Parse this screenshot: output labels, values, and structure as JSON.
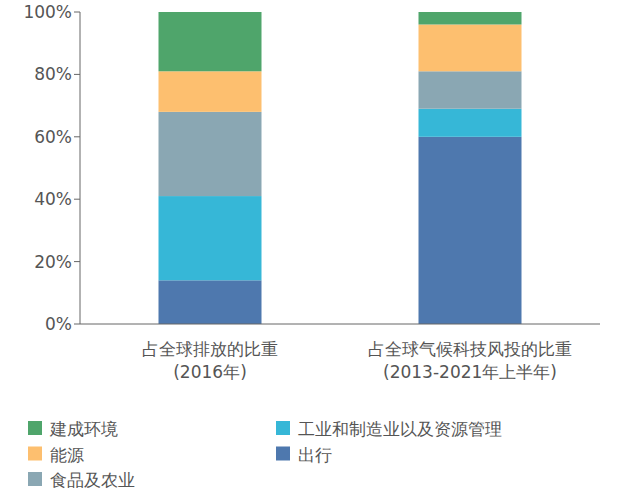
{
  "chart_data": {
    "type": "bar",
    "stacked": true,
    "categories": [
      "占全球排放的比重\n(2016年)",
      "占全球气候科技风投的比重\n(2013-2021年上半年)"
    ],
    "series": [
      {
        "name": "出行",
        "color": "#4e78ae",
        "values": [
          14,
          60
        ]
      },
      {
        "name": "工业和制造业以及资源管理",
        "color": "#36b7d7",
        "values": [
          27,
          9
        ]
      },
      {
        "name": "食品及农业",
        "color": "#8aa7b3",
        "values": [
          27,
          12
        ]
      },
      {
        "name": "能源",
        "color": "#fdbf6f",
        "values": [
          13,
          15
        ]
      },
      {
        "name": "建成环境",
        "color": "#4fa56b",
        "values": [
          19,
          4
        ]
      }
    ],
    "ylim": [
      0,
      100
    ],
    "yticks": [
      {
        "value": 0,
        "label": "0%"
      },
      {
        "value": 20,
        "label": "20%"
      },
      {
        "value": 40,
        "label": "40%"
      },
      {
        "value": 60,
        "label": "60%"
      },
      {
        "value": 80,
        "label": "80%"
      },
      {
        "value": 100,
        "label": "100%"
      }
    ],
    "legend": "bottom"
  }
}
